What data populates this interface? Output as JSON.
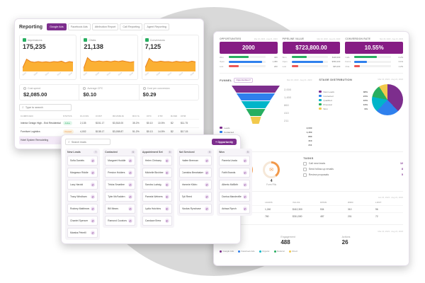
{
  "reporting": {
    "title": "Reporting",
    "tabs": [
      {
        "label": "Google Ads",
        "active": true
      },
      {
        "label": "Facebook Ads",
        "active": false
      },
      {
        "label": "Attribution Report",
        "active": false
      },
      {
        "label": "Call Reporting",
        "active": false
      },
      {
        "label": "Agent Reporting",
        "active": false
      }
    ],
    "cards": [
      {
        "label": "Impressions",
        "value": "175,235",
        "icon_color": "#27ae60",
        "spark": [
          0.18,
          0.62,
          0.5,
          0.46,
          0.5,
          0.47,
          0.49,
          0.46,
          0.5,
          0.48,
          0.52,
          0.44,
          0.5,
          0.47
        ]
      },
      {
        "label": "Clicks",
        "value": "21,138",
        "icon_color": "#27ae60",
        "spark": [
          0.15,
          0.7,
          0.52,
          0.5,
          0.53,
          0.5,
          0.52,
          0.49,
          0.53,
          0.5,
          0.54,
          0.5,
          0.46,
          0.5
        ]
      },
      {
        "label": "Conversions",
        "value": "7,125",
        "icon_color": "#27ae60",
        "spark": [
          0.2,
          0.66,
          0.5,
          0.48,
          0.52,
          0.49,
          0.5,
          0.47,
          0.51,
          0.48,
          0.5,
          0.46,
          0.52,
          0.48
        ]
      }
    ],
    "chart_dates": [
      "05/02",
      "05/09",
      "05/16",
      "05/23",
      "05/30"
    ],
    "stats": [
      {
        "label": "Cost spend",
        "value": "$2,085.00"
      },
      {
        "label": "Average CPC",
        "value": "$0.10"
      },
      {
        "label": "Cost per conversion",
        "value": "$0.29"
      }
    ],
    "search_placeholder": "Type to search",
    "table": {
      "columns": [
        "CAMPAIGN",
        "STATUS",
        "CLICKS",
        "COST",
        "REVENUE",
        "ROI %",
        "CPC",
        "CTR",
        "RANK",
        "CPM"
      ],
      "rows": [
        {
          "campaign": "Interior Design High - End Residential",
          "status": "Active",
          "selected": false,
          "cells": [
            "2,135",
            "$151.17",
            "$3,518.00",
            "35.2%",
            "$0.10",
            "10.5%",
            "$2",
            "$11.75"
          ]
        },
        {
          "campaign": "Furniture Logistics",
          "status": "Paused",
          "selected": false,
          "cells": [
            "4,002",
            "$138.17",
            "$3,008.87",
            "51.2%",
            "$0.13",
            "14.5%",
            "$2",
            "$17.15"
          ]
        },
        {
          "campaign": "Hotel System Remodeling",
          "status": "Active",
          "selected": true,
          "cells": [
            "3,205",
            "$121.85",
            "$2,540.10",
            "28.7%",
            "$0.11",
            "12.1%",
            "$3",
            "$14.20"
          ]
        }
      ]
    }
  },
  "board": {
    "search_placeholder": "Search leads",
    "button_label": "+ Opportunity",
    "columns": [
      {
        "title": "New Leads",
        "count": "7",
        "cards": [
          "Sofia Daniels",
          "Margeaux Riddle",
          "Lacy Harold",
          "Tracy Windham",
          "Rodney Matthews",
          "Chantel Spencer",
          "Marsha Petrelli"
        ]
      },
      {
        "title": "Contacted",
        "count": "6",
        "cards": [
          "Margaret Huddle",
          "Preston Holders",
          "Trisha Smartlee",
          "Tyler McFadden",
          "Bill Mears",
          "Ramond Curators"
        ]
      },
      {
        "title": "Appointment Set",
        "count": "6",
        "cards": [
          "Helen Chrissey",
          "Michelle Birchlee",
          "Sandra Ludwig",
          "Pamela Weiners",
          "Lydia Hutchins",
          "Candace Brew"
        ]
      },
      {
        "title": "Not Serviced",
        "count": "5",
        "cards": [
          "Hailee Brennan",
          "Camisha Brewbaker",
          "Yammie Kildro",
          "Tyti Reed",
          "Nicolas Rynchase"
        ]
      },
      {
        "title": "Won",
        "count": "5",
        "cards": [
          "Pamela Urada",
          "Faith Brands",
          "Alberto McBirth",
          "Donisa Mandeville",
          "Anissa Rynch"
        ]
      }
    ]
  },
  "dashboard": {
    "date_range": "Mar 23, 2023 - Aug 21, 2023",
    "kpis": [
      {
        "label": "OPPORTUNITIES",
        "value": "2000",
        "bars": [
          {
            "label": "Won",
            "value": "420",
            "color": "#27ae60",
            "pct": 55
          },
          {
            "label": "Open",
            "value": "1,380",
            "color": "#2f80ed",
            "pct": 90
          },
          {
            "label": "Lost",
            "value": "200",
            "color": "#eb5757",
            "pct": 28
          }
        ]
      },
      {
        "label": "PIPELINE VALUE",
        "value": "$723,800.00",
        "bars": [
          {
            "label": "Won",
            "value": "$118,400",
            "color": "#27ae60",
            "pct": 42
          },
          {
            "label": "Open",
            "value": "$560,200",
            "color": "#2f80ed",
            "pct": 85
          },
          {
            "label": "Lost",
            "value": "$45,200",
            "color": "#eb5757",
            "pct": 18
          }
        ]
      },
      {
        "label": "CONVERSION RATE",
        "value": "10.55%",
        "bars": [
          {
            "label": "Calls",
            "value": "6.2%",
            "color": "#27ae60",
            "pct": 62
          },
          {
            "label": "Forms",
            "value": "3.1%",
            "color": "#2f80ed",
            "pct": 34
          },
          {
            "label": "Chat",
            "value": "1.2%",
            "color": "#eb5757",
            "pct": 14
          }
        ]
      }
    ],
    "funnel": {
      "title": "FUNNEL",
      "filter_label": "Opportunities",
      "date": "Mar 23, 2023 - Aug 21, 2023",
      "segments": [
        {
          "label": "Leads",
          "value": "2,000",
          "color": "#7d2e8d",
          "width": 1
        },
        {
          "label": "Contacted",
          "value": "1,450",
          "color": "#2f80ed",
          "width": 0.8
        },
        {
          "label": "Qualified",
          "value": "860",
          "color": "#00b5c9",
          "width": 0.6
        },
        {
          "label": "Proposal",
          "value": "410",
          "color": "#27ae60",
          "width": 0.4
        },
        {
          "label": "Won",
          "value": "211",
          "color": "#f2c94c",
          "width": 0.22
        }
      ]
    },
    "stage_distribution": {
      "title": "STAGE DISTRIBUTION",
      "date": "Mar 23, 2023 - Aug 21, 2023",
      "slices": [
        {
          "label": "New Leads",
          "pct": 38,
          "color": "#7d2e8d"
        },
        {
          "label": "Contacted",
          "pct": 24,
          "color": "#2f80ed"
        },
        {
          "label": "Qualified",
          "pct": 16,
          "color": "#00b5c9"
        },
        {
          "label": "Proposal",
          "pct": 13,
          "color": "#27ae60"
        },
        {
          "label": "Won",
          "pct": 9,
          "color": "#f2c94c"
        }
      ]
    },
    "leads": {
      "title": "LEADS",
      "items": [
        {
          "label": "Phone Calls",
          "value": "7",
          "pct": 70,
          "icon": "phone-icon",
          "glyph": "✆"
        },
        {
          "label": "Form Fills",
          "value": "4",
          "pct": 40,
          "icon": "form-icon",
          "glyph": "✉"
        }
      ]
    },
    "tasks": {
      "title": "TASKS",
      "rows": [
        {
          "label": "Call new leads",
          "count": "12"
        },
        {
          "label": "Send follow-up emails",
          "count": "8"
        },
        {
          "label": "Review proposals",
          "count": "5"
        }
      ]
    },
    "summary": {
      "date": "Jan 23, 2023 - Aug 21, 2023",
      "columns": [
        "SOURCE",
        "LEADS",
        "VALUE",
        "OPEN",
        "WON",
        "LOST"
      ],
      "rows": [
        [
          "Google Ads",
          "1,240",
          "$412,300",
          "534",
          "310",
          "96"
        ],
        [
          "Facebook Ads",
          "760",
          "$311,500",
          "487",
          "201",
          "72"
        ]
      ]
    },
    "engagement": {
      "title": "GOOGLE ADS",
      "metrics": [
        {
          "label": "Impressions",
          "value": "517"
        },
        {
          "label": "Engagement",
          "value": "488"
        },
        {
          "label": "Actions",
          "value": "26"
        }
      ],
      "legend": [
        {
          "label": "Google Ads",
          "color": "#7d2e8d"
        },
        {
          "label": "Facebook Ads",
          "color": "#2f80ed"
        },
        {
          "label": "Organic",
          "color": "#00b5c9"
        },
        {
          "label": "Referral",
          "color": "#27ae60"
        },
        {
          "label": "Direct",
          "color": "#f2c94c"
        }
      ]
    }
  }
}
